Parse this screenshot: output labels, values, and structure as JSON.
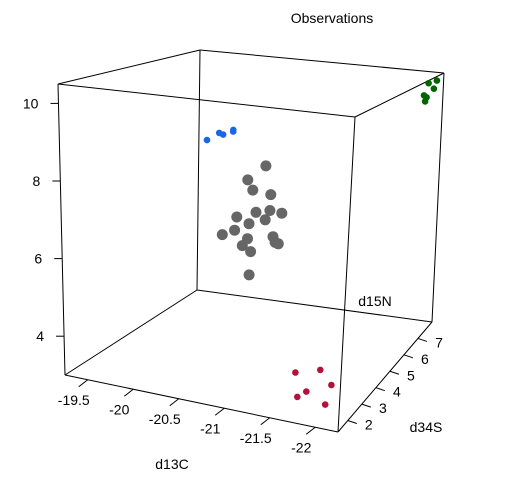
{
  "chart_data": {
    "type": "scatter3d",
    "title": "Observations",
    "xlabel": "d13C",
    "ylabel": "d34S",
    "zlabel": "d15N",
    "xlim": [
      -19.25,
      -22.25
    ],
    "ylim": [
      1.3,
      8.0
    ],
    "zlim": [
      3.0,
      10.5
    ],
    "x_ticks": [
      -19.5,
      -20,
      -20.5,
      -21,
      -21.5,
      -22
    ],
    "x_tick_labels": [
      "-19.5",
      "-20",
      "-20.5",
      "-21",
      "-21.5",
      "-22"
    ],
    "y_ticks": [
      2,
      3,
      4,
      5,
      6,
      7
    ],
    "y_tick_labels": [
      "2",
      "3",
      "4",
      "5",
      "6",
      "7"
    ],
    "z_ticks": [
      4,
      6,
      8,
      10
    ],
    "z_tick_labels": [
      "4",
      "6",
      "8",
      "10"
    ],
    "box": true,
    "grid": false,
    "legend": "none",
    "colors": {
      "grey": "#666666",
      "blue": "#1a66e6",
      "green": "#006400",
      "red": "#b3123c",
      "box": "#000000"
    },
    "series": [
      {
        "color": "#666666",
        "points": [
          {
            "x": -20.8,
            "y": 4.6,
            "z": 8.2
          },
          {
            "x": -20.5,
            "y": 5.1,
            "z": 7.6
          },
          {
            "x": -20.6,
            "y": 4.9,
            "z": 7.4
          },
          {
            "x": -20.9,
            "y": 4.4,
            "z": 7.5
          },
          {
            "x": -20.6,
            "y": 4.0,
            "z": 6.9
          },
          {
            "x": -20.9,
            "y": 4.1,
            "z": 6.9
          },
          {
            "x": -20.7,
            "y": 4.6,
            "z": 6.9
          },
          {
            "x": -20.8,
            "y": 4.9,
            "z": 6.9
          },
          {
            "x": -20.9,
            "y": 5.1,
            "z": 6.8
          },
          {
            "x": -20.7,
            "y": 4.2,
            "z": 6.7
          },
          {
            "x": -20.8,
            "y": 3.6,
            "z": 6.5
          },
          {
            "x": -20.5,
            "y": 4.4,
            "z": 6.4
          },
          {
            "x": -20.8,
            "y": 3.3,
            "z": 6.4
          },
          {
            "x": -21.0,
            "y": 4.2,
            "z": 6.3
          },
          {
            "x": -20.4,
            "y": 4.2,
            "z": 6.3
          },
          {
            "x": -20.9,
            "y": 4.6,
            "z": 6.3
          },
          {
            "x": -21.0,
            "y": 4.4,
            "z": 6.2
          },
          {
            "x": -20.8,
            "y": 3.8,
            "z": 6.1
          },
          {
            "x": -20.9,
            "y": 3.2,
            "z": 5.7
          }
        ]
      },
      {
        "color": "#1a66e6",
        "points": [
          {
            "x": -19.5,
            "y": 7.4,
            "z": 7.9
          },
          {
            "x": -19.6,
            "y": 7.6,
            "z": 8.1
          },
          {
            "x": -19.6,
            "y": 7.8,
            "z": 8.0
          },
          {
            "x": -19.7,
            "y": 7.9,
            "z": 8.1
          },
          {
            "x": -19.7,
            "y": 7.9,
            "z": 8.15
          }
        ]
      },
      {
        "color": "#006400",
        "points": [
          {
            "x": -22.1,
            "y": 7.8,
            "z": 10.2
          },
          {
            "x": -22.2,
            "y": 7.6,
            "z": 10.1
          },
          {
            "x": -22.2,
            "y": 7.8,
            "z": 10.3
          },
          {
            "x": -22.1,
            "y": 7.5,
            "z": 9.9
          },
          {
            "x": -22.1,
            "y": 7.7,
            "z": 9.8
          },
          {
            "x": -22.1,
            "y": 7.6,
            "z": 9.7
          }
        ]
      },
      {
        "color": "#b3123c",
        "points": [
          {
            "x": -21.4,
            "y": 3.5,
            "z": 3.25
          },
          {
            "x": -21.6,
            "y": 4.0,
            "z": 3.2
          },
          {
            "x": -21.6,
            "y": 3.1,
            "z": 3.0
          },
          {
            "x": -21.8,
            "y": 3.6,
            "z": 3.05
          },
          {
            "x": -21.6,
            "y": 2.5,
            "z": 3.1
          },
          {
            "x": -21.9,
            "y": 2.6,
            "z": 3.0
          }
        ]
      }
    ]
  }
}
